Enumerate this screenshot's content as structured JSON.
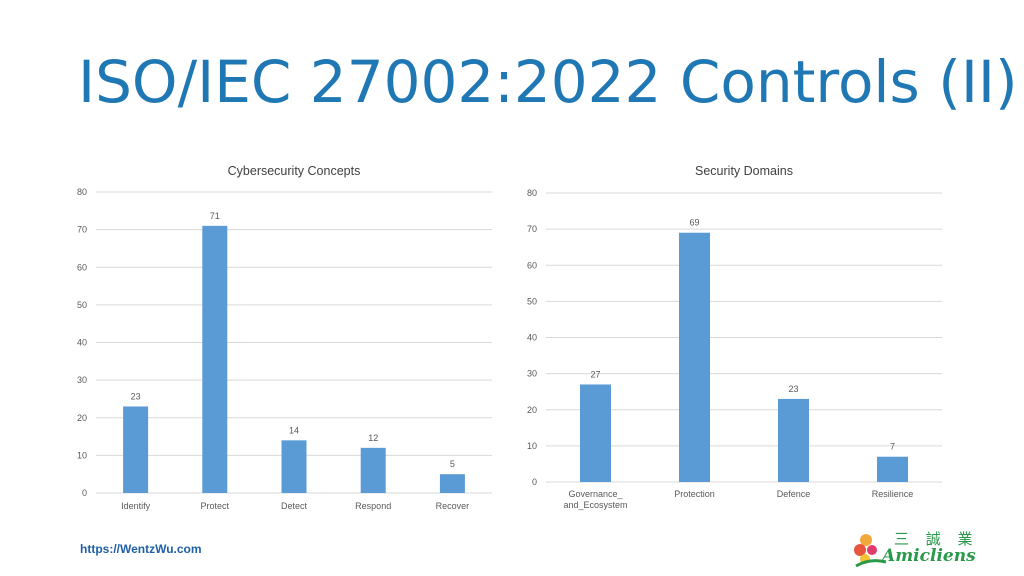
{
  "slide": {
    "title": "ISO/IEC 27002:2022 Controls (II)",
    "footer_url": "https://WentzWu.com",
    "logo": {
      "chinese": "三 誠 業",
      "english": "Amicliens"
    }
  },
  "colors": {
    "bar": "#5b9bd5",
    "grid": "#d9d9d9",
    "axis_text": "#595959",
    "title_text": "#404040"
  },
  "chart_data": [
    {
      "type": "bar",
      "title": "Cybersecurity Concepts",
      "categories": [
        "Identify",
        "Protect",
        "Detect",
        "Respond",
        "Recover"
      ],
      "values": [
        23,
        71,
        14,
        12,
        5
      ],
      "yticks": [
        0,
        10,
        20,
        30,
        40,
        50,
        60,
        70,
        80
      ],
      "ylim": [
        0,
        80
      ],
      "grid": true,
      "data_labels": true
    },
    {
      "type": "bar",
      "title": "Security Domains",
      "categories": [
        "Governance_ and_Ecosystem",
        "Protection",
        "Defence",
        "Resilience"
      ],
      "values": [
        27,
        69,
        23,
        7
      ],
      "yticks": [
        0,
        10,
        20,
        30,
        40,
        50,
        60,
        70,
        80
      ],
      "ylim": [
        0,
        80
      ],
      "grid": true,
      "data_labels": true
    }
  ]
}
